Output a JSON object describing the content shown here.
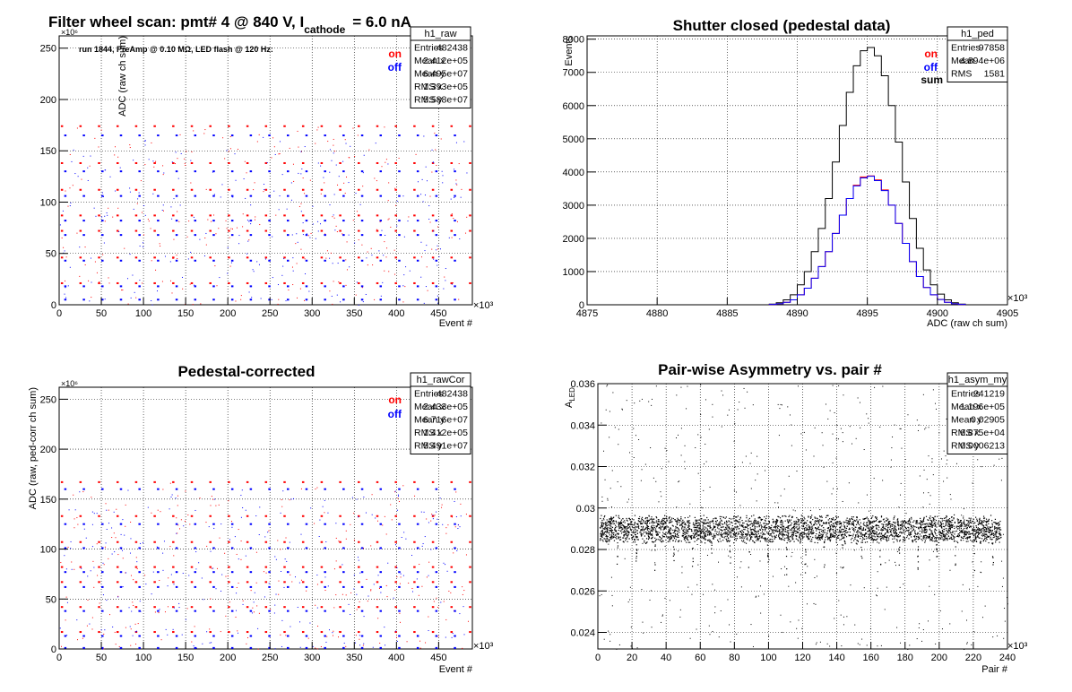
{
  "colors": {
    "on": "#ff0000",
    "off": "#0000ff",
    "sum": "#000000",
    "grid": "#000000"
  },
  "chart_data": [
    {
      "name": "h1_raw",
      "type": "scatter",
      "title": "Filter wheel scan: pmt#   4 @   840 V, I",
      "title_sub": "cathode",
      "title_tail": "= 6.0 nA",
      "annotation": "run 1844, PreAmp @ 0.10 MΩ, LED flash @  120 Hz:",
      "xlabel": "Event #",
      "ylabel": "ADC (raw ch sum)",
      "x_multiplier": "×10³",
      "y_multiplier": "×10⁶",
      "xlim": [
        0,
        490
      ],
      "ylim": [
        0,
        262
      ],
      "xticks": [
        0,
        50,
        100,
        150,
        200,
        250,
        300,
        350,
        400,
        450
      ],
      "yticks": [
        0,
        50,
        100,
        150,
        200,
        250
      ],
      "grid": true,
      "legend": {
        "placement": "top-right",
        "entries": [
          {
            "label": "on",
            "color": "#ff0000"
          },
          {
            "label": "off",
            "color": "#0000ff"
          }
        ]
      },
      "stats": {
        "title": "h1_raw",
        "rows": [
          [
            "Entries",
            "482438"
          ],
          [
            "Mean x",
            "2.412e+05"
          ],
          [
            "Mean y",
            "6.495e+07"
          ],
          [
            "RMS x",
            "1.393e+05"
          ],
          [
            "RMS y",
            "5.588e+07"
          ]
        ]
      },
      "series": [
        {
          "name": "on",
          "color": "#ff0000",
          "levels": [
            174,
            138,
            112,
            87,
            72,
            46,
            21
          ],
          "period": 22,
          "offset": 2
        },
        {
          "name": "off",
          "color": "#0000ff",
          "levels": [
            165,
            130,
            106,
            82,
            68,
            43,
            18,
            5
          ],
          "period": 22,
          "offset": 6
        }
      ]
    },
    {
      "name": "h1_ped",
      "type": "histogram",
      "title": "Shutter closed (pedestal data)",
      "xlabel": "ADC (raw ch sum)",
      "ylabel": "Events",
      "x_multiplier": "×10³",
      "xlim": [
        4875,
        4905
      ],
      "ylim": [
        0,
        8100
      ],
      "xticks": [
        4875,
        4880,
        4885,
        4890,
        4895,
        4900,
        4905
      ],
      "yticks": [
        0,
        1000,
        2000,
        3000,
        4000,
        5000,
        6000,
        7000,
        8000
      ],
      "grid": true,
      "legend": {
        "placement": "top-right",
        "entries": [
          {
            "label": "on",
            "color": "#ff0000"
          },
          {
            "label": "off",
            "color": "#0000ff"
          },
          {
            "label": "sum",
            "color": "#000000"
          }
        ]
      },
      "stats": {
        "title": "h1_ped",
        "rows": [
          [
            "Entries",
            "97858"
          ],
          [
            "Mean",
            "4.894e+06"
          ],
          [
            "RMS",
            "1581"
          ]
        ]
      },
      "bins": {
        "start": 4888,
        "width": 0.5,
        "count": 28
      },
      "series": [
        {
          "name": "sum",
          "color": "#000000",
          "values": [
            20,
            60,
            150,
            300,
            600,
            1000,
            1600,
            2300,
            3200,
            4300,
            5400,
            6400,
            7200,
            7650,
            7750,
            7500,
            6900,
            6000,
            4900,
            3700,
            2600,
            1700,
            1050,
            600,
            320,
            150,
            60,
            20
          ]
        },
        {
          "name": "on",
          "color": "#ff0000",
          "values": [
            10,
            30,
            75,
            150,
            300,
            500,
            800,
            1150,
            1600,
            2150,
            2700,
            3200,
            3600,
            3850,
            3880,
            3760,
            3460,
            3000,
            2450,
            1850,
            1300,
            850,
            520,
            300,
            160,
            75,
            30,
            10
          ]
        },
        {
          "name": "off",
          "color": "#0000ff",
          "values": [
            10,
            30,
            75,
            150,
            300,
            500,
            800,
            1150,
            1600,
            2150,
            2700,
            3200,
            3580,
            3820,
            3870,
            3740,
            3440,
            3000,
            2450,
            1850,
            1300,
            850,
            520,
            300,
            160,
            75,
            30,
            10
          ]
        }
      ]
    },
    {
      "name": "h1_rawCor",
      "type": "scatter",
      "title": "Pedestal-corrected",
      "xlabel": "Event #",
      "ylabel": "ADC (raw, ped-corr ch sum)",
      "x_multiplier": "×10³",
      "y_multiplier": "×10⁶",
      "xlim": [
        0,
        490
      ],
      "ylim": [
        0,
        262
      ],
      "xticks": [
        0,
        50,
        100,
        150,
        200,
        250,
        300,
        350,
        400,
        450
      ],
      "yticks": [
        0,
        50,
        100,
        150,
        200,
        250
      ],
      "grid": true,
      "legend": {
        "placement": "top-right",
        "entries": [
          {
            "label": "on",
            "color": "#ff0000"
          },
          {
            "label": "off",
            "color": "#0000ff"
          }
        ]
      },
      "stats": {
        "title": "h1_rawCor",
        "rows": [
          [
            "Entries",
            "482438"
          ],
          [
            "Mean x",
            "2.433e+05"
          ],
          [
            "Mean y",
            "6.716e+07"
          ],
          [
            "RMS x",
            "1.412e+05"
          ],
          [
            "RMS y",
            "5.491e+07"
          ]
        ]
      },
      "series": [
        {
          "name": "on",
          "color": "#ff0000",
          "levels": [
            167,
            133,
            107,
            82,
            67,
            42,
            17
          ],
          "period": 22,
          "offset": 2
        },
        {
          "name": "off",
          "color": "#0000ff",
          "levels": [
            160,
            125,
            101,
            77,
            62,
            38,
            13,
            1
          ],
          "period": 22,
          "offset": 6
        }
      ]
    },
    {
      "name": "h1_asym_my",
      "type": "scatter",
      "title": "Pair-wise Asymmetry vs. pair #",
      "xlabel": "Pair #",
      "ylabel": "A",
      "ylabel_sub": "LED",
      "x_multiplier": "×10³",
      "xlim": [
        0,
        240
      ],
      "ylim": [
        0.0232,
        0.036
      ],
      "xticks": [
        0,
        20,
        40,
        60,
        80,
        100,
        120,
        140,
        160,
        180,
        200,
        220,
        240
      ],
      "yticks": [
        0.024,
        0.026,
        0.028,
        0.03,
        0.032,
        0.034,
        0.036
      ],
      "grid": true,
      "stats": {
        "title": "h1_asym_my",
        "rows": [
          [
            "Entries",
            "241219"
          ],
          [
            "Mean x",
            "1.196e+05"
          ],
          [
            "Mean y",
            "0.02905"
          ],
          [
            "RMS x",
            "6.875e+04"
          ],
          [
            "RMS y",
            "0.0006213"
          ]
        ]
      },
      "band": {
        "center": 0.029,
        "halfwidth": 0.00055,
        "dip_period": 11,
        "dip_depth": 0.0018
      },
      "series": [
        {
          "color": "#000000"
        }
      ]
    }
  ]
}
